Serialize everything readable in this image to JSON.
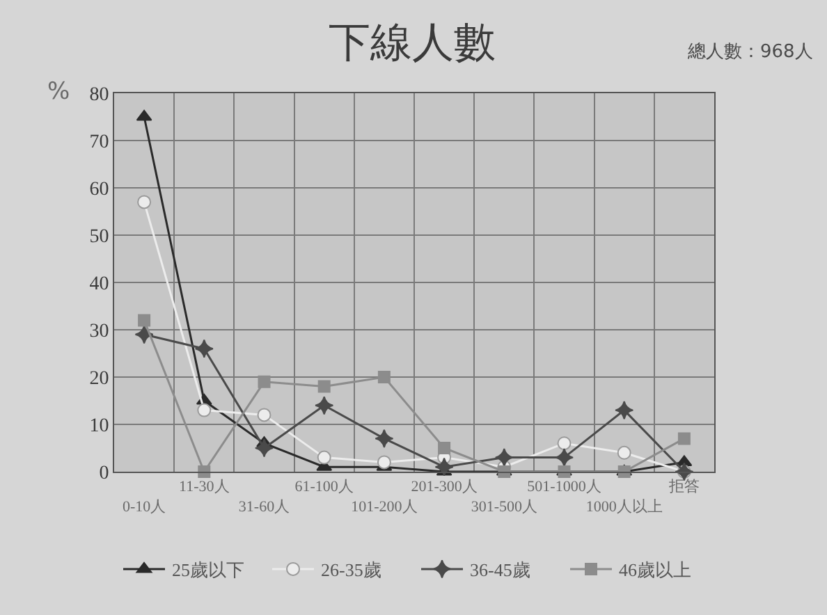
{
  "chart_data": {
    "type": "line",
    "title": "下線人數",
    "ylabel": "%",
    "annotations": [
      "總人數：968人"
    ],
    "categories": [
      "0-10人",
      "11-30人",
      "31-60人",
      "61-100人",
      "101-200人",
      "201-300人",
      "301-500人",
      "501-1000人",
      "1000人以上",
      "拒答"
    ],
    "series": [
      {
        "name": "25歲以下",
        "color": "#2a2a2a",
        "marker": "triangle",
        "values": [
          75,
          15,
          6,
          1,
          1,
          0,
          0,
          0,
          0,
          2
        ]
      },
      {
        "name": "26-35歲",
        "color": "#ececec",
        "marker": "circle",
        "values": [
          57,
          13,
          12,
          3,
          2,
          3,
          1,
          6,
          4,
          0
        ]
      },
      {
        "name": "36-45歲",
        "color": "#4a4a4a",
        "marker": "star",
        "values": [
          29,
          26,
          5,
          14,
          7,
          1,
          3,
          3,
          13,
          0
        ]
      },
      {
        "name": "46歲以上",
        "color": "#8c8c8c",
        "marker": "square",
        "values": [
          32,
          0,
          19,
          18,
          20,
          5,
          0,
          0,
          0,
          7
        ]
      }
    ],
    "ylim": [
      0,
      80
    ],
    "yticks": [
      0,
      10,
      20,
      30,
      40,
      50,
      60,
      70,
      80
    ],
    "grid": true,
    "legend": "bottom",
    "line_style": "solid"
  }
}
